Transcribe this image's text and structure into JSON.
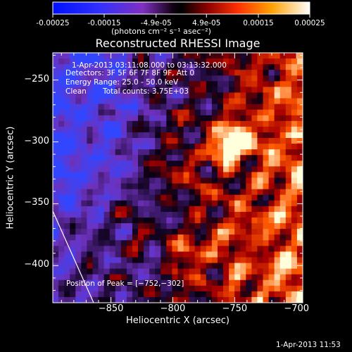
{
  "colorbar": {
    "tick_labels": [
      "-0.00025",
      "-0.00015",
      "-4.9e-05",
      "4.9e-05",
      "0.00015",
      "0.00025"
    ],
    "tick_values": [
      -0.00025,
      -0.00015,
      -4.9e-05,
      4.9e-05,
      0.00015,
      0.00025
    ],
    "range": [
      -0.00025,
      0.00025
    ],
    "unit_label": "(photons cm⁻² s⁻¹ asec⁻²)"
  },
  "chart_data": {
    "type": "heatmap",
    "title": "Reconstructed RHESSI Image",
    "xlabel": "Heliocentric X (arcsec)",
    "ylabel": "Heliocentric Y (arcsec)",
    "xlim": [
      -897,
      -695
    ],
    "ylim": [
      -430,
      -228
    ],
    "x_ticks": [
      -850,
      -800,
      -750,
      -700
    ],
    "y_ticks": [
      -250,
      -300,
      -350,
      -400
    ],
    "x_tick_labels": [
      "−850",
      "−800",
      "−750",
      "−700"
    ],
    "y_tick_labels": [
      "−250",
      "−300",
      "−350",
      "−400"
    ],
    "peak_position": [
      -752,
      -302
    ],
    "limb_line": [
      [
        -897,
        -356
      ],
      [
        -864,
        -430
      ]
    ],
    "info": {
      "time_range": "1-Apr-2013 03:11:08.000 to 03:13:32.000",
      "detectors": "Detectors: 3F 5F 6F 7F 8F 9F, Att 0",
      "energy_range": "Energy Range: 25.0 - 50.0 keV",
      "clean": "Clean",
      "total_counts": "Total counts: 3.75E+03",
      "peak_text": "Position of Peak = [−752,−302]"
    },
    "colors": {
      "low": "#0000ff",
      "mid_low": "#5a30c8",
      "zero": "#000000",
      "mid_high": "#d01000",
      "high": "#ffffff"
    }
  },
  "timestamp": "1-Apr-2013 11:53"
}
